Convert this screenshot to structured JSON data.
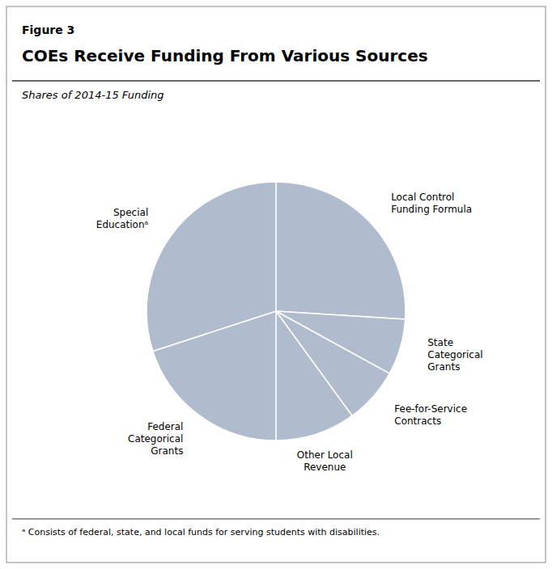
{
  "chart_data": {
    "type": "pie",
    "figure_label": "Figure 3",
    "title": "COEs Receive Funding From Various Sources",
    "subtitle": "Shares of 2014-15 Funding",
    "footnote": "ᵃ Consists of federal, state, and local funds for serving students with disabilities.",
    "categories": [
      "Local Control\nFunding Formula",
      "State\nCategorical\nGrants",
      "Fee-for-Service\nContracts",
      "Other Local\nRevenue",
      "Federal\nCategorical\nGrants",
      "Special\nEducationᵃ"
    ],
    "values": [
      26,
      7,
      7,
      10,
      20,
      30
    ],
    "color": "#b0bccd"
  }
}
